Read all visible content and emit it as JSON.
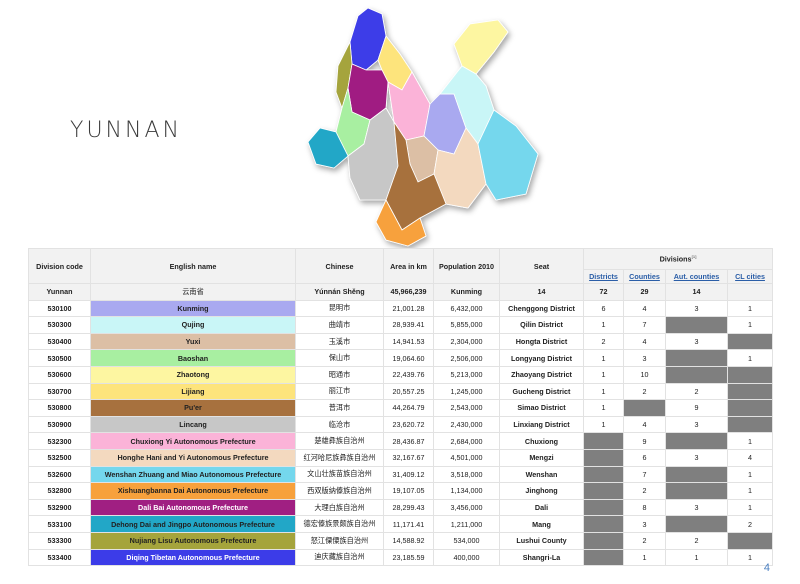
{
  "slide": {
    "title": "YUNNAN",
    "page_number": "4"
  },
  "table": {
    "headers": {
      "code": "Division code",
      "english": "English name",
      "chinese": "Chinese",
      "area": "Area in km",
      "population": "Population 2010",
      "seat": "Seat",
      "divisions": "Divisions",
      "divisions_note": "[1]",
      "sub": [
        "Districts",
        "Counties",
        "Aut. counties",
        "CL cities"
      ]
    },
    "total": {
      "code": "Yunnan",
      "english": "云南省",
      "chinese": "Yúnnán Shěng",
      "area": "45,966,239",
      "population": "Kunming",
      "seat": "14",
      "districts": "72",
      "counties": "29",
      "aut_counties": "14",
      "cl_cities": ""
    },
    "rows": [
      {
        "code": "530100",
        "english": "Kunming",
        "color": "#a9a9f0",
        "chinese": "昆明市",
        "area": "21,001.28",
        "population": "6,432,000",
        "seat": "Chenggong District",
        "districts": "6",
        "counties": "4",
        "aut_counties": "3",
        "cl_cities": "1"
      },
      {
        "code": "530300",
        "english": "Qujing",
        "color": "#c9f6f7",
        "chinese": "曲靖市",
        "area": "28,939.41",
        "population": "5,855,000",
        "seat": "Qilin District",
        "districts": "1",
        "counties": "7",
        "aut_counties": "",
        "cl_cities": "1"
      },
      {
        "code": "530400",
        "english": "Yuxi",
        "color": "#dcbfa5",
        "chinese": "玉溪市",
        "area": "14,941.53",
        "population": "2,304,000",
        "seat": "Hongta District",
        "districts": "2",
        "counties": "4",
        "aut_counties": "3",
        "cl_cities": ""
      },
      {
        "code": "530500",
        "english": "Baoshan",
        "color": "#a8efa1",
        "chinese": "保山市",
        "area": "19,064.60",
        "population": "2,506,000",
        "seat": "Longyang District",
        "districts": "1",
        "counties": "3",
        "aut_counties": "",
        "cl_cities": "1"
      },
      {
        "code": "530600",
        "english": "Zhaotong",
        "color": "#fdf6a1",
        "chinese": "昭通市",
        "area": "22,439.76",
        "population": "5,213,000",
        "seat": "Zhaoyang District",
        "districts": "1",
        "counties": "10",
        "aut_counties": "",
        "cl_cities": ""
      },
      {
        "code": "530700",
        "english": "Lijiang",
        "color": "#fde47c",
        "chinese": "丽江市",
        "area": "20,557.25",
        "population": "1,245,000",
        "seat": "Gucheng District",
        "districts": "1",
        "counties": "2",
        "aut_counties": "2",
        "cl_cities": ""
      },
      {
        "code": "530800",
        "english": "Pu'er",
        "color": "#a7713e",
        "chinese": "普洱市",
        "area": "44,264.79",
        "population": "2,543,000",
        "seat": "Simao District",
        "districts": "1",
        "counties": "",
        "aut_counties": "9",
        "cl_cities": ""
      },
      {
        "code": "530900",
        "english": "Lincang",
        "color": "#c7c7c7",
        "chinese": "临沧市",
        "area": "23,620.72",
        "population": "2,430,000",
        "seat": "Linxiang District",
        "districts": "1",
        "counties": "4",
        "aut_counties": "3",
        "cl_cities": ""
      },
      {
        "code": "532300",
        "english": "Chuxiong Yi Autonomous Prefecture",
        "color": "#fbb3d8",
        "chinese": "楚雄彝族自治州",
        "area": "28,436.87",
        "population": "2,684,000",
        "seat": "Chuxiong",
        "districts": "",
        "counties": "9",
        "aut_counties": "",
        "cl_cities": "1"
      },
      {
        "code": "532500",
        "english": "Honghe Hani and Yi Autonomous Prefecture",
        "color": "#f3d9bf",
        "chinese": "红河哈尼族彝族自治州",
        "area": "32,167.67",
        "population": "4,501,000",
        "seat": "Mengzi",
        "districts": "",
        "counties": "6",
        "aut_counties": "3",
        "cl_cities": "4"
      },
      {
        "code": "532600",
        "english": "Wenshan Zhuang and Miao Autonomous Prefecture",
        "color": "#74d7ed",
        "chinese": "文山壮族苗族自治州",
        "area": "31,409.12",
        "population": "3,518,000",
        "seat": "Wenshan",
        "districts": "",
        "counties": "7",
        "aut_counties": "",
        "cl_cities": "1"
      },
      {
        "code": "532800",
        "english": "Xishuangbanna Dai Autonomous Prefecture",
        "color": "#f7a13c",
        "chinese": "西双版纳傣族自治州",
        "area": "19,107.05",
        "population": "1,134,000",
        "seat": "Jinghong",
        "districts": "",
        "counties": "2",
        "aut_counties": "",
        "cl_cities": "1"
      },
      {
        "code": "532900",
        "english": "Dali Bai Autonomous Prefecture",
        "color": "#a01f82",
        "chinese": "大理白族自治州",
        "area": "28,299.43",
        "population": "3,456,000",
        "seat": "Dali",
        "districts": "",
        "counties": "8",
        "aut_counties": "3",
        "cl_cities": "1"
      },
      {
        "code": "533100",
        "english": "Dehong Dai and Jingpo Autonomous Prefecture",
        "color": "#22a7c7",
        "chinese": "德宏傣族景颇族自治州",
        "area": "11,171.41",
        "population": "1,211,000",
        "seat": "Mang",
        "districts": "",
        "counties": "3",
        "aut_counties": "",
        "cl_cities": "2"
      },
      {
        "code": "533300",
        "english": "Nujiang Lisu Autonomous Prefecture",
        "color": "#a5a43c",
        "chinese": "怒江傈僳族自治州",
        "area": "14,588.92",
        "population": "534,000",
        "seat": "Lushui County",
        "districts": "",
        "counties": "2",
        "aut_counties": "2",
        "cl_cities": ""
      },
      {
        "code": "533400",
        "english": "Diqing Tibetan Autonomous Prefecture",
        "color": "#3c3ce8",
        "chinese": "迪庆藏族自治州",
        "area": "23,185.59",
        "population": "400,000",
        "seat": "Shangri-La",
        "districts": "",
        "counties": "1",
        "aut_counties": "1",
        "cl_cities": "1"
      }
    ]
  }
}
